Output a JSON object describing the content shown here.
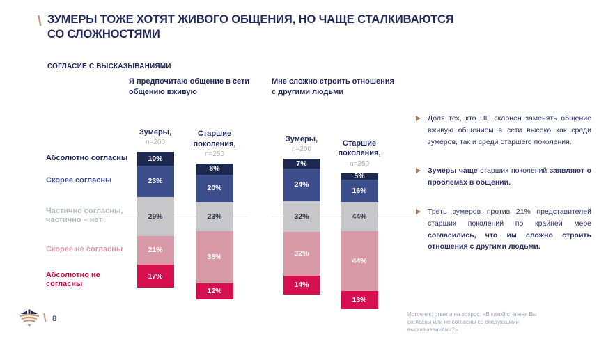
{
  "slide": {
    "title": "ЗУМЕРЫ ТОЖЕ ХОТЯТ ЖИВОГО ОБЩЕНИЯ, НО ЧАЩЕ СТАЛКИВАЮТСЯ СО СЛОЖНОСТЯМИ",
    "kicker": "СОГЛАСИЕ С ВЫСКАЗЫВАНИЯМИ",
    "page_number": "8",
    "source": "Источник: ответы на вопрос: «В какой степени Вы согласны или не согласны со следующими высказываниями?»"
  },
  "colors": {
    "accent_tan": "#c49a86",
    "arrow_bronze": "#a87d57",
    "title_navy": "#202a5a",
    "segment_absolutely_agree": "#1d2950",
    "segment_rather_agree": "#3c4d8b",
    "segment_neutral": "#c7c7ca",
    "segment_rather_disagree": "#d798a8",
    "segment_absolutely_disagree": "#d60f4e"
  },
  "chart_data": {
    "type": "bar",
    "subtype": "diverging-stacked-percent",
    "categories": [
      "Абсолютно согласны",
      "Скорее согласны",
      "Частично согласны, частично – нет",
      "Скорее не согласны",
      "Абсолютно не согласны"
    ],
    "legend_position": "left",
    "grid": false,
    "unit": "%",
    "groups": [
      {
        "question": "Я предпочитаю общение в сети общению вживую",
        "bars": [
          {
            "label": "Зумеры,",
            "n": "n=200",
            "values": [
              10,
              23,
              29,
              21,
              17
            ]
          },
          {
            "label": "Старшие поколения,",
            "n": "n=250",
            "values": [
              8,
              20,
              23,
              38,
              12
            ]
          }
        ]
      },
      {
        "question": "Мне сложно строить отношения с другими людьми",
        "bars": [
          {
            "label": "Зумеры,",
            "n": "n=200",
            "values": [
              7,
              24,
              32,
              32,
              14
            ]
          },
          {
            "label": "Старшие поколения,",
            "n": "n=250",
            "values": [
              5,
              16,
              44,
              44,
              13
            ]
          }
        ]
      }
    ]
  },
  "insights": {
    "items": [
      {
        "segments": [
          {
            "text": "Доля тех, кто НЕ склонен заменять общение вживую общением в сети высока как среди зумеров, так и среди старшего поколения.",
            "bold": false
          }
        ]
      },
      {
        "segments": [
          {
            "text": "Зумеры чаще ",
            "bold": true
          },
          {
            "text": "старших поколений ",
            "bold": false
          },
          {
            "text": "заявляют о проблемах в общении.",
            "bold": true
          }
        ]
      },
      {
        "segments": [
          {
            "text": "Треть зумеров против 21% представителей старших поколений по крайней мере ",
            "bold": false
          },
          {
            "text": "согласились, что им сложно строить отношения с другими людьми.",
            "bold": true
          }
        ]
      }
    ]
  }
}
